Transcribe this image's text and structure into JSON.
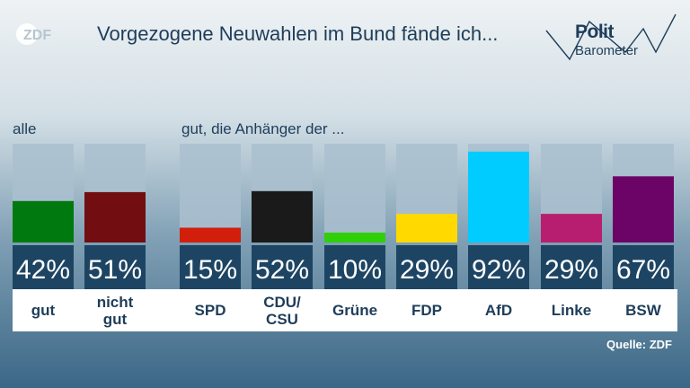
{
  "brand": {
    "logo_text": "ZDF"
  },
  "title": "Vorgezogene Neuwahlen im Bund fände ich...",
  "politbarometer": {
    "line1": "Polit",
    "line2": "Barometer"
  },
  "section_all": "alle",
  "section_parties": "gut, die Anhänger der ...",
  "source": "Quelle: ZDF",
  "chart_data": {
    "type": "bar",
    "title": "Vorgezogene Neuwahlen im Bund fände ich...",
    "ylim": [
      0,
      100
    ],
    "groups": [
      {
        "label": "alle",
        "categories": [
          "gut",
          "nicht gut"
        ]
      },
      {
        "label": "gut, die Anhänger der ...",
        "categories": [
          "SPD",
          "CDU/CSU",
          "Grüne",
          "FDP",
          "AfD",
          "Linke",
          "BSW"
        ]
      }
    ],
    "categories": [
      "gut",
      "nicht gut",
      "SPD",
      "CDU/CSU",
      "Grüne",
      "FDP",
      "AfD",
      "Linke",
      "BSW"
    ],
    "category_lines": [
      [
        "gut"
      ],
      [
        "nicht",
        "gut"
      ],
      [
        "SPD"
      ],
      [
        "CDU/",
        "CSU"
      ],
      [
        "Grüne"
      ],
      [
        "FDP"
      ],
      [
        "AfD"
      ],
      [
        "Linke"
      ],
      [
        "BSW"
      ]
    ],
    "values": [
      42,
      51,
      15,
      52,
      10,
      29,
      92,
      29,
      67
    ],
    "value_labels": [
      "42%",
      "51%",
      "15%",
      "52%",
      "10%",
      "29%",
      "92%",
      "29%",
      "67%"
    ],
    "colors": [
      "#007a0f",
      "#720d12",
      "#d21f0c",
      "#1a1a1a",
      "#2fd00a",
      "#ffd900",
      "#00ccff",
      "#b81e6f",
      "#6b0466"
    ]
  }
}
